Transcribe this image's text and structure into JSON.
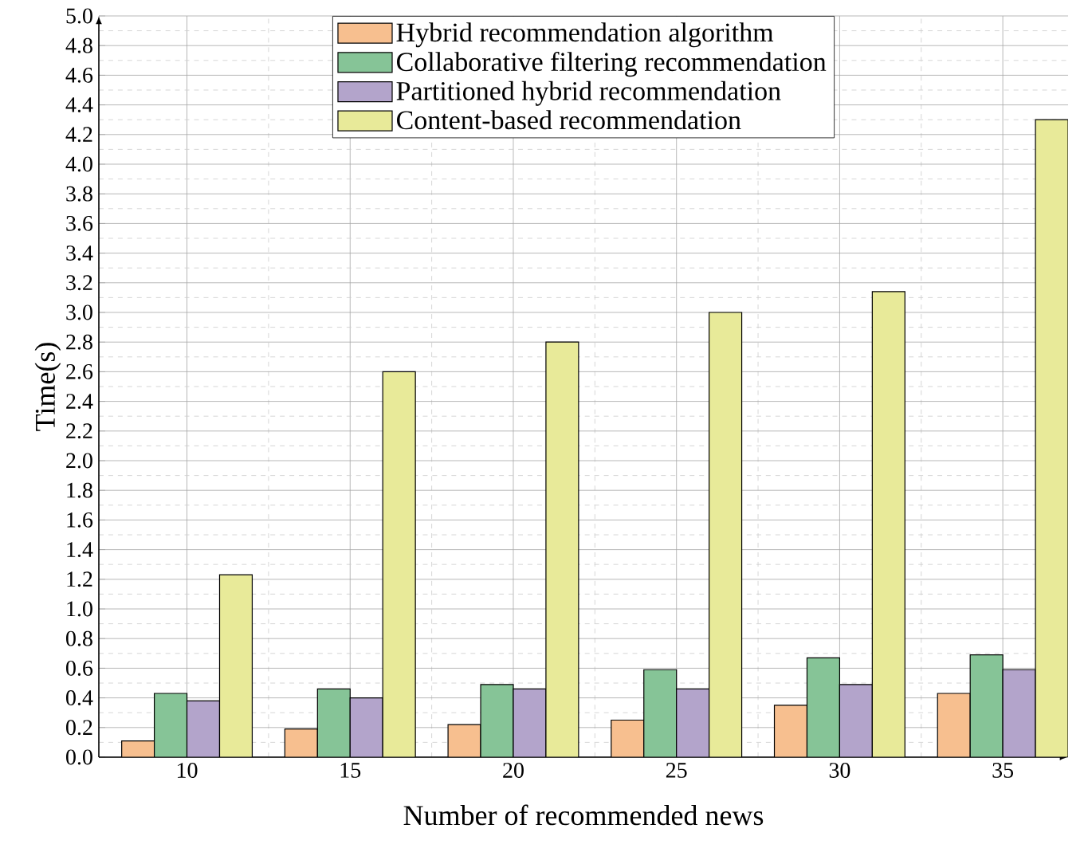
{
  "chart_data": {
    "type": "bar",
    "xlabel": "Number of recommended news",
    "ylabel": "Time(s)",
    "categories": [
      "10",
      "15",
      "20",
      "25",
      "30",
      "35"
    ],
    "series": [
      {
        "name": "Hybrid recommendation algorithm",
        "color": "#f7bf8f",
        "values": [
          0.11,
          0.19,
          0.22,
          0.25,
          0.35,
          0.43
        ]
      },
      {
        "name": "Collaborative filtering recommendation",
        "color": "#86c497",
        "values": [
          0.43,
          0.46,
          0.49,
          0.59,
          0.67,
          0.69
        ]
      },
      {
        "name": "Partitioned hybrid recommendation",
        "color": "#b3a4cb",
        "values": [
          0.38,
          0.4,
          0.46,
          0.46,
          0.49,
          0.59
        ]
      },
      {
        "name": "Content-based recommendation",
        "color": "#e8ea99",
        "values": [
          1.23,
          2.6,
          2.8,
          3.0,
          3.14,
          4.3
        ]
      }
    ],
    "ylim": [
      0,
      5
    ],
    "yticks": [
      {
        "value": 0,
        "label": "0.0"
      },
      0.2,
      0.4,
      0.6,
      0.8,
      {
        "value": 1,
        "label": "1.0"
      },
      1.2,
      1.4,
      1.6,
      1.8,
      {
        "value": 2,
        "label": "2.0"
      },
      2.2,
      2.4,
      2.6,
      2.8,
      {
        "value": 3,
        "label": "3.0"
      },
      3.2,
      3.4,
      3.6,
      3.8,
      {
        "value": 4,
        "label": "4.0"
      },
      4.2,
      4.4,
      4.6,
      4.8,
      {
        "value": 5,
        "label": "5.0"
      }
    ],
    "grid": true,
    "legend": "top"
  }
}
